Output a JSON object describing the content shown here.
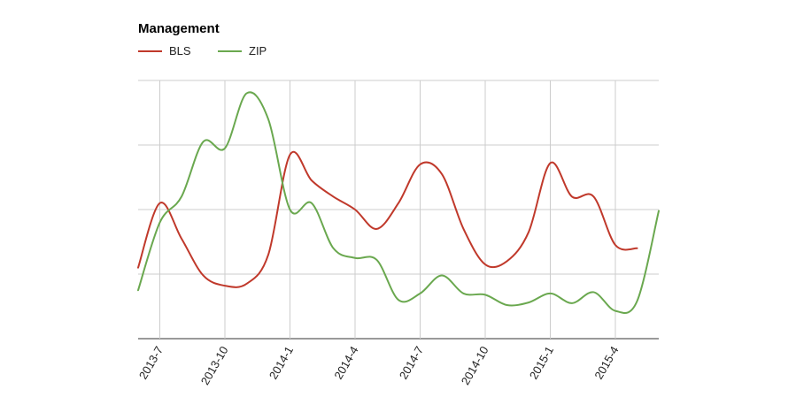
{
  "chart_data": {
    "type": "line",
    "title": "Management",
    "xlabel": "",
    "ylabel": "",
    "legend_position": "top-left",
    "grid": true,
    "x_tick_labels": [
      "2013-7",
      "2013-10",
      "2014-1",
      "2014-4",
      "2014-7",
      "2014-10",
      "2015-1",
      "2015-4"
    ],
    "x_domain": [
      0,
      24
    ],
    "y_domain": [
      0,
      4
    ],
    "y_gridlines": [
      0,
      1,
      2,
      3,
      4
    ],
    "series": [
      {
        "name": "BLS",
        "color": "#c0392b",
        "x": [
          0,
          1,
          2,
          3,
          4,
          5,
          6,
          7,
          8,
          9,
          10,
          11,
          12,
          13,
          14,
          15,
          16,
          17,
          18,
          19,
          20,
          21,
          22,
          23
        ],
        "values": [
          1.1,
          2.1,
          1.55,
          0.98,
          0.82,
          0.85,
          1.3,
          2.85,
          2.45,
          2.2,
          2.0,
          1.7,
          2.1,
          2.7,
          2.55,
          1.7,
          1.15,
          1.2,
          1.65,
          2.72,
          2.2,
          2.2,
          1.45,
          1.4
        ]
      },
      {
        "name": "ZIP",
        "color": "#6aa84f",
        "x": [
          0,
          1,
          2,
          3,
          4,
          5,
          6,
          7,
          8,
          9,
          10,
          11,
          12,
          13,
          14,
          15,
          16,
          17,
          18,
          19,
          20,
          21,
          22,
          23,
          24
        ],
        "values": [
          0.75,
          1.8,
          2.2,
          3.05,
          2.95,
          3.8,
          3.4,
          2.0,
          2.1,
          1.4,
          1.25,
          1.22,
          0.6,
          0.7,
          0.98,
          0.7,
          0.68,
          0.52,
          0.56,
          0.7,
          0.55,
          0.72,
          0.43,
          0.58,
          1.98
        ]
      }
    ]
  }
}
